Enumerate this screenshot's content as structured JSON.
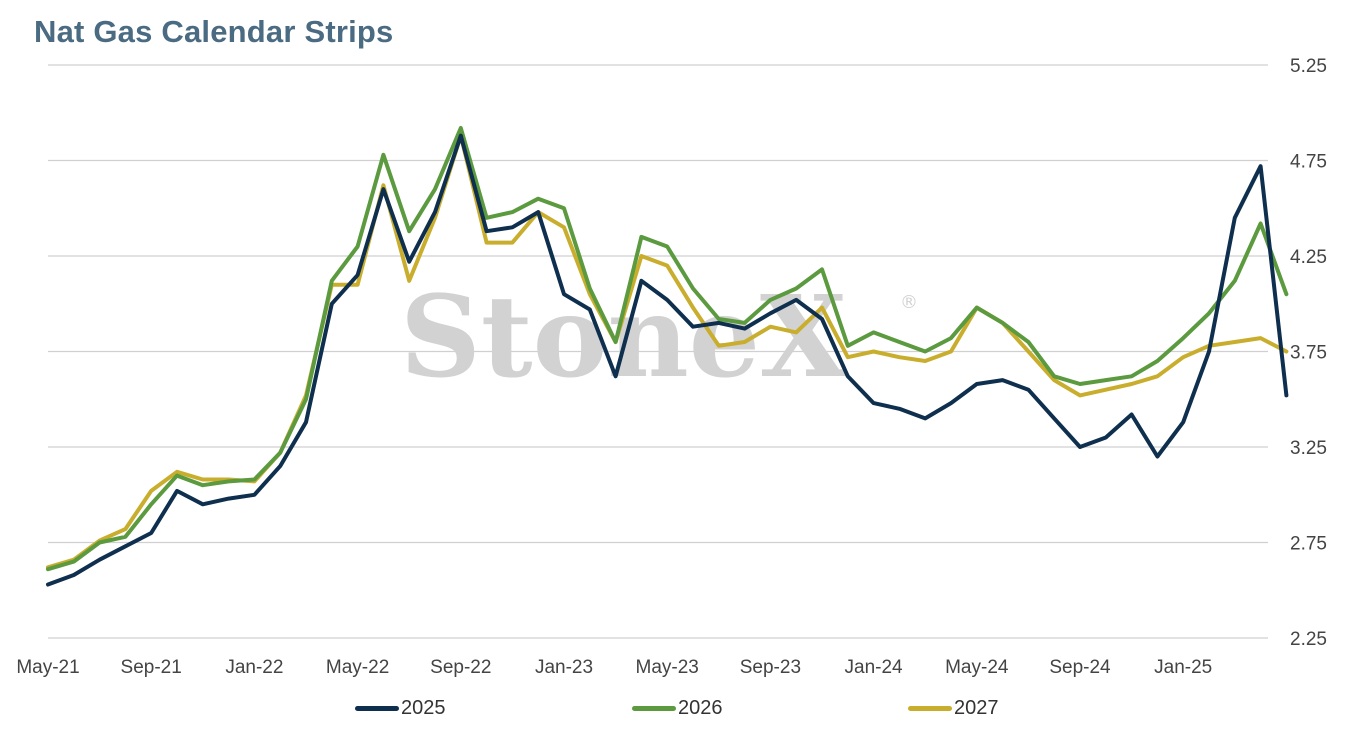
{
  "title": "Nat Gas Calendar Strips",
  "watermark": "StoneX",
  "watermark_mark": "®",
  "colors": {
    "2025": "#0f2f4f",
    "2026": "#5b9a3e",
    "2027": "#c9ae2e",
    "grid": "#d0d0d0",
    "title": "#4a6b82"
  },
  "chart_data": {
    "type": "line",
    "title": "Nat Gas Calendar Strips",
    "xlabel": "",
    "ylabel": "",
    "x_ticks": [
      "May-21",
      "Sep-21",
      "Jan-22",
      "May-22",
      "Sep-22",
      "Jan-23",
      "May-23",
      "Sep-23",
      "Jan-24",
      "May-24",
      "Sep-24",
      "Jan-25"
    ],
    "y_ticks": [
      "5.25",
      "4.75",
      "4.25",
      "3.75",
      "3.25",
      "2.75",
      "2.25"
    ],
    "ylim": [
      2.25,
      5.25
    ],
    "y_axis_position": "right",
    "grid": true,
    "legend_position": "bottom",
    "x": [
      "2021-05",
      "2021-06",
      "2021-07",
      "2021-08",
      "2021-09",
      "2021-10",
      "2021-11",
      "2021-12",
      "2022-01",
      "2022-02",
      "2022-03",
      "2022-04",
      "2022-05",
      "2022-06",
      "2022-07",
      "2022-08",
      "2022-09",
      "2022-10",
      "2022-11",
      "2022-12",
      "2023-01",
      "2023-02",
      "2023-03",
      "2023-04",
      "2023-05",
      "2023-06",
      "2023-07",
      "2023-08",
      "2023-09",
      "2023-10",
      "2023-11",
      "2023-12",
      "2024-01",
      "2024-02",
      "2024-03",
      "2024-04",
      "2024-05",
      "2024-06",
      "2024-07",
      "2024-08",
      "2024-09",
      "2024-10",
      "2024-11",
      "2024-12",
      "2025-01",
      "2025-02",
      "2025-03",
      "2025-04",
      "2025-05"
    ],
    "series": [
      {
        "name": "2025",
        "values": [
          2.53,
          2.58,
          2.66,
          2.73,
          2.8,
          3.02,
          2.95,
          2.98,
          3.0,
          3.15,
          3.38,
          4.0,
          4.15,
          4.6,
          4.22,
          4.48,
          4.88,
          4.38,
          4.4,
          4.48,
          4.05,
          3.97,
          3.62,
          4.12,
          4.02,
          3.88,
          3.9,
          3.87,
          3.95,
          4.02,
          3.92,
          3.62,
          3.48,
          3.45,
          3.4,
          3.48,
          3.58,
          3.6,
          3.55,
          3.4,
          3.25,
          3.3,
          3.42,
          3.2,
          3.38,
          3.75,
          4.45,
          4.72,
          3.52
        ]
      },
      {
        "name": "2026",
        "values": [
          2.61,
          2.65,
          2.75,
          2.78,
          2.95,
          3.1,
          3.05,
          3.07,
          3.08,
          3.22,
          3.5,
          4.12,
          4.3,
          4.78,
          4.38,
          4.6,
          4.92,
          4.45,
          4.48,
          4.55,
          4.5,
          4.08,
          3.8,
          4.35,
          4.3,
          4.08,
          3.92,
          3.9,
          4.02,
          4.08,
          4.18,
          3.78,
          3.85,
          3.8,
          3.75,
          3.82,
          3.98,
          3.9,
          3.8,
          3.62,
          3.58,
          3.6,
          3.62,
          3.7,
          3.82,
          3.95,
          4.12,
          4.42,
          4.05
        ]
      },
      {
        "name": "2027",
        "values": [
          2.62,
          2.66,
          2.76,
          2.82,
          3.02,
          3.12,
          3.08,
          3.08,
          3.07,
          3.22,
          3.52,
          4.1,
          4.1,
          4.62,
          4.12,
          4.45,
          4.88,
          4.32,
          4.32,
          4.48,
          4.4,
          4.05,
          3.8,
          4.25,
          4.2,
          3.98,
          3.78,
          3.8,
          3.88,
          3.85,
          3.98,
          3.72,
          3.75,
          3.72,
          3.7,
          3.75,
          3.98,
          3.9,
          3.75,
          3.6,
          3.52,
          3.55,
          3.58,
          3.62,
          3.72,
          3.78,
          3.8,
          3.82,
          3.75
        ]
      }
    ]
  }
}
